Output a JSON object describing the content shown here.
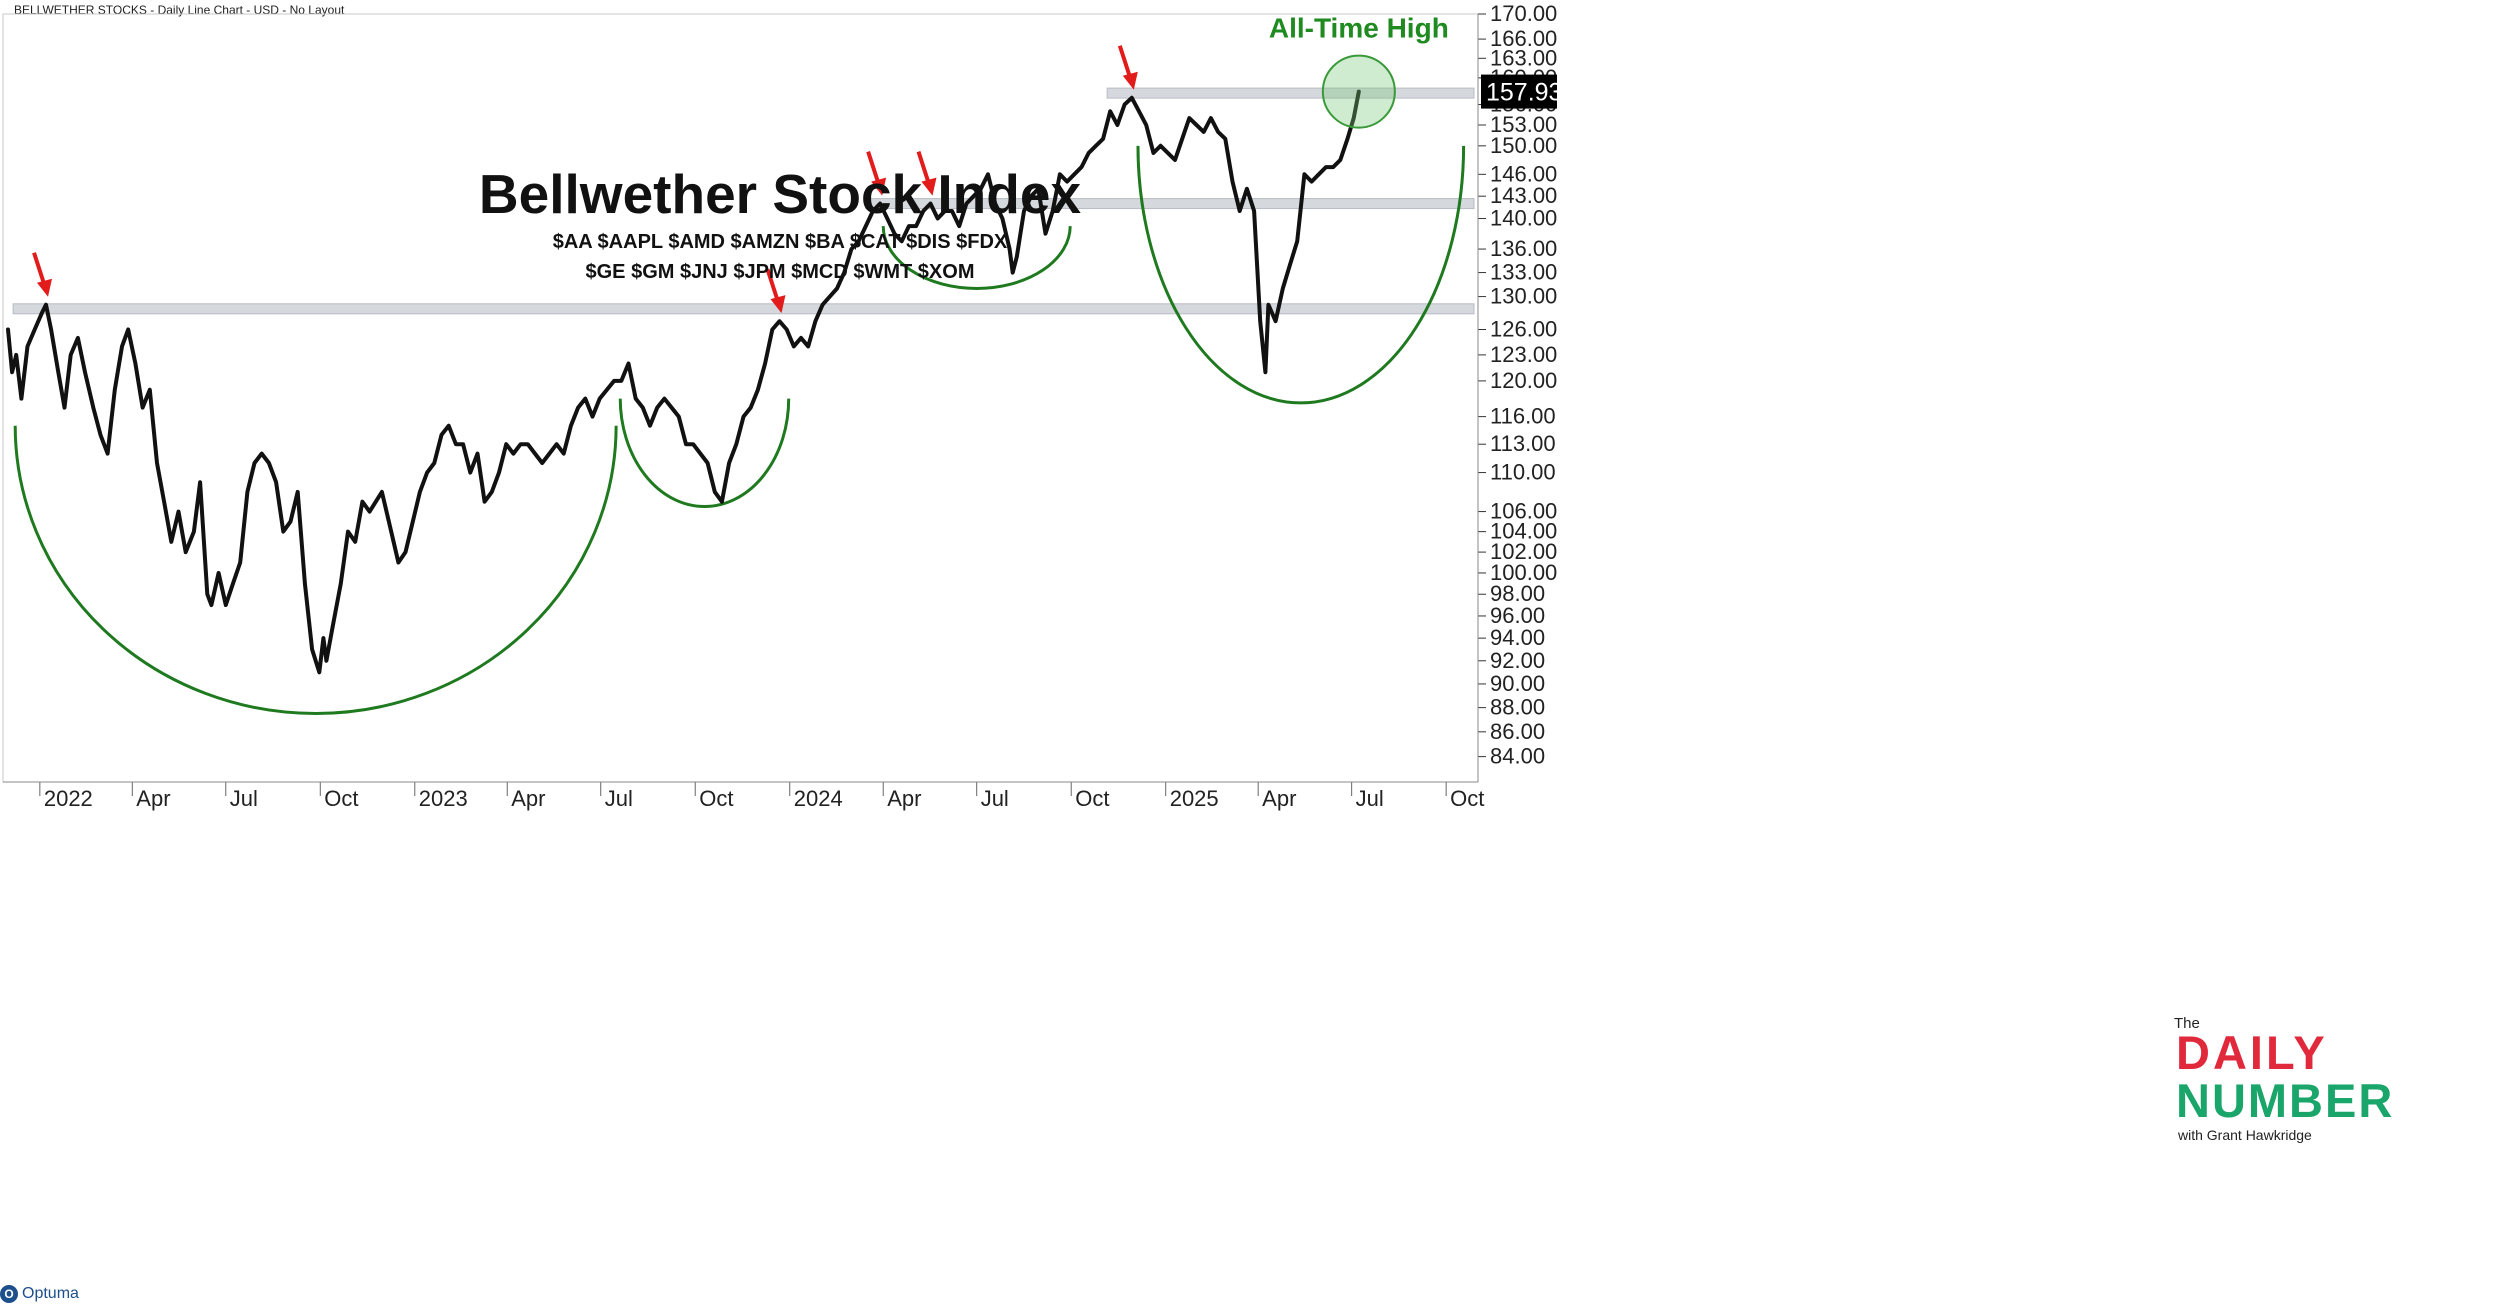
{
  "header_text": "BELLWETHER STOCKS - Daily Line Chart - USD - No Layout",
  "brand": {
    "label": "Optuma",
    "icon": "optuma-logo-icon"
  },
  "logo": {
    "line1": "The",
    "line2": "DAILY",
    "line3": "NUMBER",
    "line4": "with Grant Hawkridge"
  },
  "colors": {
    "price_line": "#111111",
    "arc": "#1f7a1f",
    "arrow": "#e21b1b",
    "level_band": "#d5d8dd",
    "ath_text": "#1f8a1f",
    "last_price_bg": "#000000"
  },
  "chart_data": {
    "type": "line",
    "title": "Bellwether Stock Index",
    "subtitle_lines": [
      "$AA $AAPL $AMD $AMZN $BA $CAT $DIS $FDX",
      "$GE $GM $JNJ $JPM $MCD $WMT $XOM"
    ],
    "y_scale": "log",
    "ylim": [
      82,
      170
    ],
    "y_ticks": [
      84,
      86,
      88,
      90,
      92,
      94,
      96,
      98,
      100,
      102,
      104,
      106,
      110,
      113,
      116,
      120,
      123,
      126,
      130,
      133,
      136,
      140,
      143,
      146,
      150,
      153,
      156,
      160,
      163,
      166,
      170
    ],
    "y_tick_labels": [
      "84.00",
      "86.00",
      "88.00",
      "90.00",
      "92.00",
      "94.00",
      "96.00",
      "98.00",
      "100.00",
      "102.00",
      "104.00",
      "106.00",
      "110.00",
      "113.00",
      "116.00",
      "120.00",
      "123.00",
      "126.00",
      "130.00",
      "133.00",
      "136.00",
      "140.00",
      "143.00",
      "146.00",
      "150.00",
      "153.00",
      "156.00",
      "160.00",
      "163.00",
      "166.00",
      "170.00"
    ],
    "x_range": [
      "2021-12-01",
      "2025-11-01"
    ],
    "x_ticks": [
      {
        "date": "2022-01-01",
        "label": "2022"
      },
      {
        "date": "2022-04-01",
        "label": "Apr"
      },
      {
        "date": "2022-07-01",
        "label": "Jul"
      },
      {
        "date": "2022-10-01",
        "label": "Oct"
      },
      {
        "date": "2023-01-01",
        "label": "2023"
      },
      {
        "date": "2023-04-01",
        "label": "Apr"
      },
      {
        "date": "2023-07-01",
        "label": "Jul"
      },
      {
        "date": "2023-10-01",
        "label": "Oct"
      },
      {
        "date": "2024-01-01",
        "label": "2024"
      },
      {
        "date": "2024-04-01",
        "label": "Apr"
      },
      {
        "date": "2024-07-01",
        "label": "Jul"
      },
      {
        "date": "2024-10-01",
        "label": "Oct"
      },
      {
        "date": "2025-01-01",
        "label": "2025"
      },
      {
        "date": "2025-04-01",
        "label": "Apr"
      },
      {
        "date": "2025-07-01",
        "label": "Jul"
      },
      {
        "date": "2025-10-01",
        "label": "Oct"
      }
    ],
    "series": [
      {
        "points": [
          [
            "2021-12-01",
            126
          ],
          [
            "2021-12-05",
            121
          ],
          [
            "2021-12-09",
            123
          ],
          [
            "2021-12-14",
            118
          ],
          [
            "2021-12-20",
            124
          ],
          [
            "2021-12-27",
            126
          ],
          [
            "2022-01-03",
            128
          ],
          [
            "2022-01-07",
            129
          ],
          [
            "2022-01-12",
            126
          ],
          [
            "2022-01-19",
            121
          ],
          [
            "2022-01-25",
            117
          ],
          [
            "2022-01-31",
            123
          ],
          [
            "2022-02-07",
            125
          ],
          [
            "2022-02-14",
            121
          ],
          [
            "2022-02-22",
            117
          ],
          [
            "2022-03-01",
            114
          ],
          [
            "2022-03-08",
            112
          ],
          [
            "2022-03-15",
            119
          ],
          [
            "2022-03-22",
            124
          ],
          [
            "2022-03-28",
            126
          ],
          [
            "2022-04-04",
            122
          ],
          [
            "2022-04-11",
            117
          ],
          [
            "2022-04-18",
            119
          ],
          [
            "2022-04-25",
            111
          ],
          [
            "2022-05-02",
            107
          ],
          [
            "2022-05-09",
            103
          ],
          [
            "2022-05-16",
            106
          ],
          [
            "2022-05-23",
            102
          ],
          [
            "2022-05-31",
            104
          ],
          [
            "2022-06-06",
            109
          ],
          [
            "2022-06-13",
            98
          ],
          [
            "2022-06-17",
            97
          ],
          [
            "2022-06-24",
            100
          ],
          [
            "2022-07-01",
            97
          ],
          [
            "2022-07-08",
            99
          ],
          [
            "2022-07-15",
            101
          ],
          [
            "2022-07-22",
            108
          ],
          [
            "2022-07-29",
            111
          ],
          [
            "2022-08-05",
            112
          ],
          [
            "2022-08-12",
            111
          ],
          [
            "2022-08-19",
            109
          ],
          [
            "2022-08-26",
            104
          ],
          [
            "2022-09-02",
            105
          ],
          [
            "2022-09-09",
            108
          ],
          [
            "2022-09-16",
            99
          ],
          [
            "2022-09-23",
            93
          ],
          [
            "2022-09-30",
            91
          ],
          [
            "2022-10-04",
            94
          ],
          [
            "2022-10-07",
            92
          ],
          [
            "2022-10-13",
            95
          ],
          [
            "2022-10-21",
            99
          ],
          [
            "2022-10-28",
            104
          ],
          [
            "2022-11-04",
            103
          ],
          [
            "2022-11-11",
            107
          ],
          [
            "2022-11-18",
            106
          ],
          [
            "2022-11-30",
            108
          ],
          [
            "2022-12-09",
            104
          ],
          [
            "2022-12-16",
            101
          ],
          [
            "2022-12-23",
            102
          ],
          [
            "2023-01-06",
            108
          ],
          [
            "2023-01-13",
            110
          ],
          [
            "2023-01-20",
            111
          ],
          [
            "2023-01-27",
            114
          ],
          [
            "2023-02-03",
            115
          ],
          [
            "2023-02-10",
            113
          ],
          [
            "2023-02-17",
            113
          ],
          [
            "2023-02-24",
            110
          ],
          [
            "2023-03-03",
            112
          ],
          [
            "2023-03-10",
            107
          ],
          [
            "2023-03-17",
            108
          ],
          [
            "2023-03-24",
            110
          ],
          [
            "2023-03-31",
            113
          ],
          [
            "2023-04-07",
            112
          ],
          [
            "2023-04-14",
            113
          ],
          [
            "2023-04-21",
            113
          ],
          [
            "2023-04-28",
            112
          ],
          [
            "2023-05-05",
            111
          ],
          [
            "2023-05-12",
            112
          ],
          [
            "2023-05-19",
            113
          ],
          [
            "2023-05-26",
            112
          ],
          [
            "2023-06-02",
            115
          ],
          [
            "2023-06-09",
            117
          ],
          [
            "2023-06-16",
            118
          ],
          [
            "2023-06-23",
            116
          ],
          [
            "2023-06-30",
            118
          ],
          [
            "2023-07-07",
            119
          ],
          [
            "2023-07-14",
            120
          ],
          [
            "2023-07-21",
            120
          ],
          [
            "2023-07-28",
            122
          ],
          [
            "2023-08-04",
            118
          ],
          [
            "2023-08-11",
            117
          ],
          [
            "2023-08-18",
            115
          ],
          [
            "2023-08-25",
            117
          ],
          [
            "2023-09-01",
            118
          ],
          [
            "2023-09-08",
            117
          ],
          [
            "2023-09-15",
            116
          ],
          [
            "2023-09-22",
            113
          ],
          [
            "2023-09-29",
            113
          ],
          [
            "2023-10-06",
            112
          ],
          [
            "2023-10-13",
            111
          ],
          [
            "2023-10-20",
            108
          ],
          [
            "2023-10-27",
            107
          ],
          [
            "2023-11-03",
            111
          ],
          [
            "2023-11-10",
            113
          ],
          [
            "2023-11-17",
            116
          ],
          [
            "2023-11-24",
            117
          ],
          [
            "2023-12-01",
            119
          ],
          [
            "2023-12-08",
            122
          ],
          [
            "2023-12-15",
            126
          ],
          [
            "2023-12-22",
            127
          ],
          [
            "2023-12-29",
            126
          ],
          [
            "2024-01-05",
            124
          ],
          [
            "2024-01-12",
            125
          ],
          [
            "2024-01-19",
            124
          ],
          [
            "2024-01-26",
            127
          ],
          [
            "2024-02-02",
            129
          ],
          [
            "2024-02-09",
            130
          ],
          [
            "2024-02-16",
            131
          ],
          [
            "2024-02-23",
            133
          ],
          [
            "2024-03-01",
            136
          ],
          [
            "2024-03-08",
            137
          ],
          [
            "2024-03-15",
            139
          ],
          [
            "2024-03-22",
            141
          ],
          [
            "2024-03-29",
            142
          ],
          [
            "2024-04-05",
            140
          ],
          [
            "2024-04-12",
            138
          ],
          [
            "2024-04-19",
            137
          ],
          [
            "2024-04-26",
            139
          ],
          [
            "2024-05-03",
            139
          ],
          [
            "2024-05-10",
            141
          ],
          [
            "2024-05-17",
            142
          ],
          [
            "2024-05-24",
            140
          ],
          [
            "2024-05-31",
            141
          ],
          [
            "2024-06-07",
            141
          ],
          [
            "2024-06-14",
            139
          ],
          [
            "2024-06-21",
            142
          ],
          [
            "2024-06-28",
            143
          ],
          [
            "2024-07-05",
            144
          ],
          [
            "2024-07-12",
            146
          ],
          [
            "2024-07-19",
            142
          ],
          [
            "2024-07-26",
            140
          ],
          [
            "2024-08-02",
            136
          ],
          [
            "2024-08-05",
            133
          ],
          [
            "2024-08-09",
            135
          ],
          [
            "2024-08-16",
            141
          ],
          [
            "2024-08-23",
            143
          ],
          [
            "2024-08-30",
            144
          ],
          [
            "2024-09-06",
            138
          ],
          [
            "2024-09-13",
            141
          ],
          [
            "2024-09-20",
            146
          ],
          [
            "2024-09-27",
            145
          ],
          [
            "2024-10-04",
            146
          ],
          [
            "2024-10-11",
            147
          ],
          [
            "2024-10-18",
            149
          ],
          [
            "2024-10-25",
            150
          ],
          [
            "2024-11-01",
            151
          ],
          [
            "2024-11-08",
            155
          ],
          [
            "2024-11-15",
            153
          ],
          [
            "2024-11-22",
            156
          ],
          [
            "2024-11-29",
            157
          ],
          [
            "2024-12-06",
            155
          ],
          [
            "2024-12-13",
            153
          ],
          [
            "2024-12-20",
            149
          ],
          [
            "2024-12-27",
            150
          ],
          [
            "2025-01-03",
            149
          ],
          [
            "2025-01-10",
            148
          ],
          [
            "2025-01-17",
            151
          ],
          [
            "2025-01-24",
            154
          ],
          [
            "2025-01-31",
            153
          ],
          [
            "2025-02-07",
            152
          ],
          [
            "2025-02-14",
            154
          ],
          [
            "2025-02-21",
            152
          ],
          [
            "2025-02-28",
            151
          ],
          [
            "2025-03-07",
            145
          ],
          [
            "2025-03-14",
            141
          ],
          [
            "2025-03-21",
            144
          ],
          [
            "2025-03-28",
            141
          ],
          [
            "2025-04-03",
            127
          ],
          [
            "2025-04-08",
            121
          ],
          [
            "2025-04-11",
            129
          ],
          [
            "2025-04-18",
            127
          ],
          [
            "2025-04-25",
            131
          ],
          [
            "2025-05-02",
            134
          ],
          [
            "2025-05-09",
            137
          ],
          [
            "2025-05-16",
            146
          ],
          [
            "2025-05-23",
            145
          ],
          [
            "2025-05-30",
            146
          ],
          [
            "2025-06-06",
            147
          ],
          [
            "2025-06-13",
            147
          ],
          [
            "2025-06-20",
            148
          ],
          [
            "2025-06-27",
            151
          ],
          [
            "2025-07-03",
            154
          ],
          [
            "2025-07-08",
            157.93
          ]
        ]
      }
    ],
    "last_price": {
      "value": 157.93,
      "label": "157.93"
    },
    "resistance_levels": [
      {
        "value": 128.5,
        "from": "2021-12-06",
        "to": "2025-11-01"
      },
      {
        "value": 142.0,
        "from": "2024-03-15",
        "to": "2025-11-01"
      },
      {
        "value": 157.7,
        "from": "2024-11-05",
        "to": "2025-11-01"
      }
    ],
    "peak_arrows": [
      {
        "date": "2022-01-07",
        "value": 129
      },
      {
        "date": "2023-12-22",
        "value": 127
      },
      {
        "date": "2024-03-29",
        "value": 142
      },
      {
        "date": "2024-05-17",
        "value": 142
      },
      {
        "date": "2024-11-29",
        "value": 157
      }
    ],
    "bottom_arcs": [
      {
        "from": "2021-12-08",
        "to": "2023-07-16",
        "top": 115,
        "bottom": 87.5
      },
      {
        "from": "2023-07-20",
        "to": "2023-12-31",
        "top": 118,
        "bottom": 106.5
      },
      {
        "from": "2024-04-01",
        "to": "2024-09-30",
        "top": 139,
        "bottom": 131
      },
      {
        "from": "2024-12-05",
        "to": "2025-10-18",
        "top": 150,
        "bottom": 117.5
      }
    ],
    "annotation": {
      "text": "All-Time High",
      "date": "2025-07-08",
      "value": 157.93
    }
  }
}
